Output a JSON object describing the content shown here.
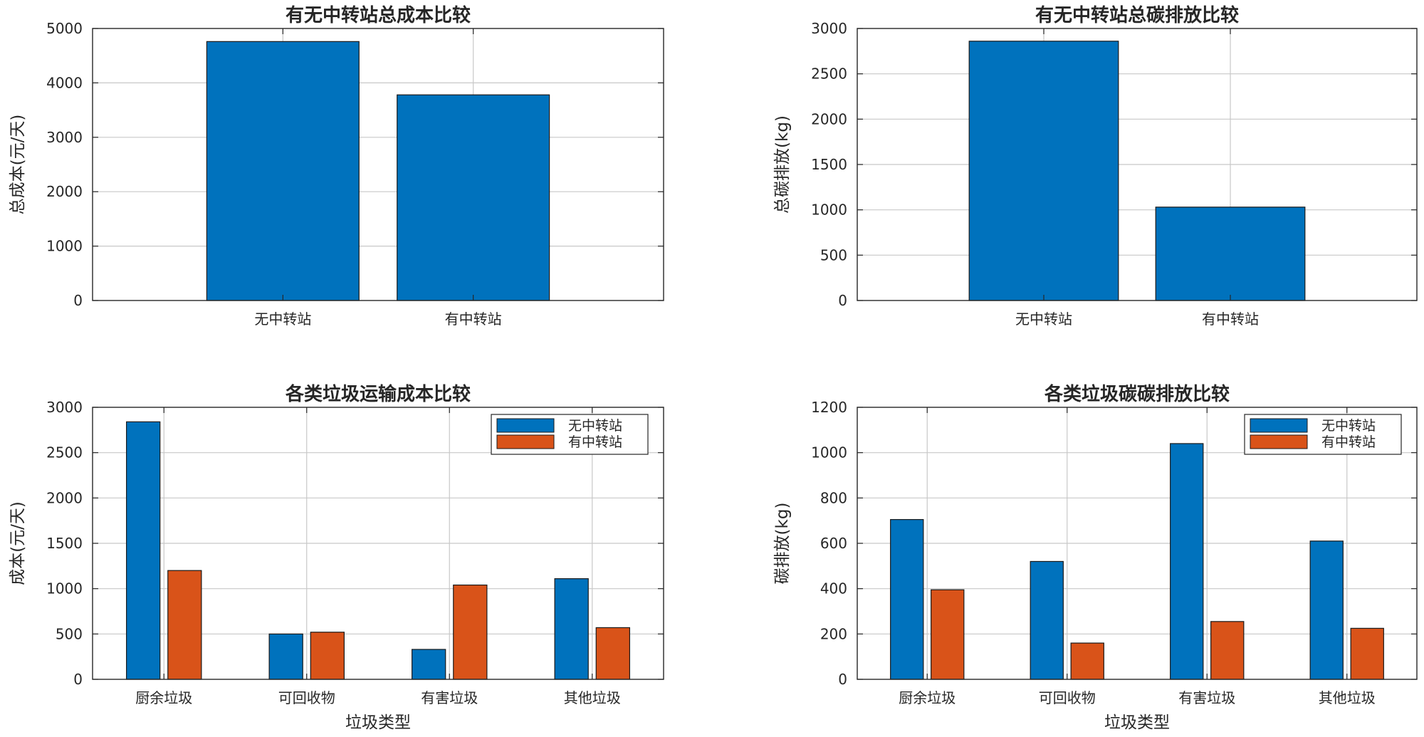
{
  "colors": {
    "series1": "#0072BD",
    "series2": "#D95319",
    "grid": "#c8c8c8",
    "axis": "#262626"
  },
  "chart_data": [
    {
      "type": "bar",
      "title": "有无中转站总成本比较",
      "xlabel": "",
      "ylabel": "总成本(元/天)",
      "categories": [
        "无中转站",
        "有中转站"
      ],
      "series": [
        {
          "values": [
            4760,
            3780
          ]
        }
      ],
      "ylim": [
        0,
        5000
      ],
      "yticks": [
        0,
        1000,
        2000,
        3000,
        4000,
        5000
      ],
      "ytick_labels": [
        "0",
        "1000",
        "2000",
        "3000",
        "4000",
        "5000"
      ],
      "grid": true,
      "legend": null
    },
    {
      "type": "bar",
      "title": "有无中转站总碳排放比较",
      "xlabel": "",
      "ylabel": "总碳排放(kg)",
      "categories": [
        "无中转站",
        "有中转站"
      ],
      "series": [
        {
          "values": [
            2860,
            1030
          ]
        }
      ],
      "ylim": [
        0,
        3000
      ],
      "yticks": [
        0,
        500,
        1000,
        1500,
        2000,
        2500,
        3000
      ],
      "ytick_labels": [
        "0",
        "500",
        "1000",
        "1500",
        "2000",
        "2500",
        "3000"
      ],
      "grid": true,
      "legend": null
    },
    {
      "type": "bar",
      "title": "各类垃圾运输成本比较",
      "xlabel": "垃圾类型",
      "ylabel": "成本(元/天)",
      "categories": [
        "厨余垃圾",
        "可回收物",
        "有害垃圾",
        "其他垃圾"
      ],
      "series": [
        {
          "name": "无中转站",
          "values": [
            2840,
            500,
            330,
            1110
          ]
        },
        {
          "name": "有中转站",
          "values": [
            1200,
            520,
            1040,
            570
          ]
        }
      ],
      "ylim": [
        0,
        3000
      ],
      "yticks": [
        0,
        500,
        1000,
        1500,
        2000,
        2500,
        3000
      ],
      "ytick_labels": [
        "0",
        "500",
        "1000",
        "1500",
        "2000",
        "2500",
        "3000"
      ],
      "grid": true,
      "legend": "top-right"
    },
    {
      "type": "bar",
      "title": "各类垃圾碳碳排放比较",
      "xlabel": "垃圾类型",
      "ylabel": "碳排放(kg)",
      "categories": [
        "厨余垃圾",
        "可回收物",
        "有害垃圾",
        "其他垃圾"
      ],
      "series": [
        {
          "name": "无中转站",
          "values": [
            705,
            520,
            1040,
            610
          ]
        },
        {
          "name": "有中转站",
          "values": [
            395,
            160,
            255,
            225
          ]
        }
      ],
      "ylim": [
        0,
        1200
      ],
      "yticks": [
        0,
        200,
        400,
        600,
        800,
        1000,
        1200
      ],
      "ytick_labels": [
        "0",
        "200",
        "400",
        "600",
        "800",
        "1000",
        "1200"
      ],
      "grid": true,
      "legend": "top-right"
    }
  ]
}
